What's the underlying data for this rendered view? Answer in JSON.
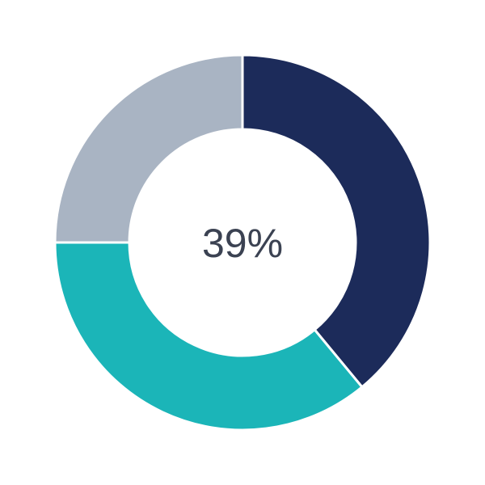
{
  "chart_data": {
    "type": "pie",
    "variant": "donut",
    "center_label": "39%",
    "slices": [
      {
        "value": 39,
        "color": "#1c2b5a"
      },
      {
        "value": 36,
        "color": "#1bb5b8"
      },
      {
        "value": 25,
        "color": "#a9b4c3"
      }
    ],
    "start_angle": "top",
    "direction": "clockwise",
    "legend": "none"
  }
}
